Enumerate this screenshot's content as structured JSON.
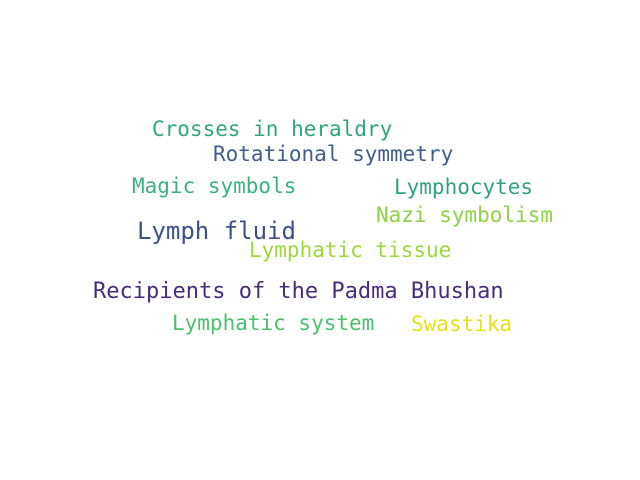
{
  "words": [
    {
      "text": "Crosses in heraldry",
      "color": "#2fa67f"
    },
    {
      "text": "Rotational symmetry",
      "color": "#3e5f8e"
    },
    {
      "text": "Magic symbols",
      "color": "#3bb27e"
    },
    {
      "text": "Lymphocytes",
      "color": "#2fa381"
    },
    {
      "text": "Nazi symbolism",
      "color": "#8ed245"
    },
    {
      "text": "Lymph fluid",
      "color": "#3b528b"
    },
    {
      "text": "Lymphatic tissue",
      "color": "#9bd93c"
    },
    {
      "text": "Recipients of the Padma Bhushan",
      "color": "#472d7b"
    },
    {
      "text": "Lymphatic system",
      "color": "#4ac16d"
    },
    {
      "text": "Swastika",
      "color": "#e3e418"
    }
  ]
}
